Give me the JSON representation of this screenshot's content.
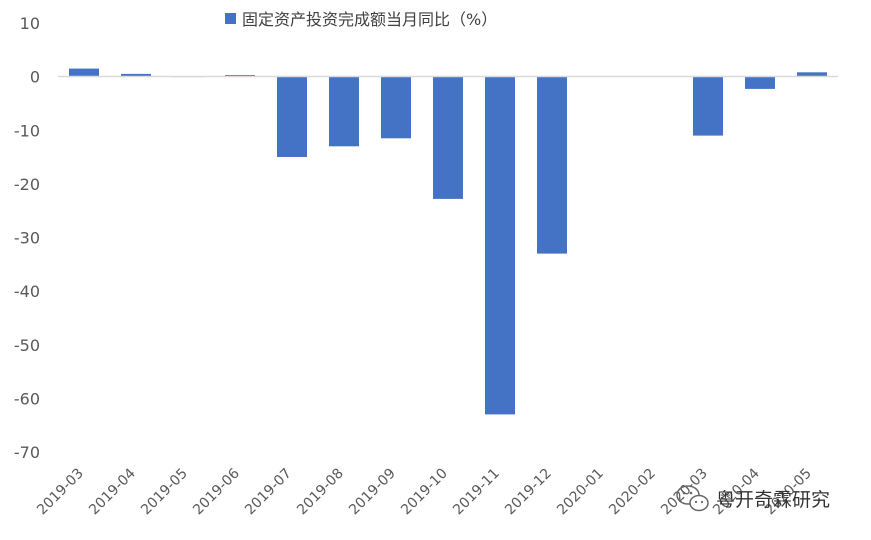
{
  "chart_data": {
    "type": "bar",
    "title": "",
    "xlabel": "",
    "ylabel": "",
    "ylim": [
      -70,
      10
    ],
    "yticks": [
      10,
      0,
      -10,
      -20,
      -30,
      -40,
      -50,
      -60,
      -70
    ],
    "legend_position": "top",
    "grid": false,
    "categories": [
      "2019-03",
      "2019-04",
      "2019-05",
      "2019-06",
      "2019-07",
      "2019-08",
      "2019-09",
      "2019-10",
      "2019-11",
      "2019-12",
      "2020-01",
      "2020-02",
      "2020-03",
      "2020-04",
      "2020-05"
    ],
    "series": [
      {
        "name": "固定资产投资完成额当月同比（%）",
        "color": "#4472c4",
        "values": [
          1.5,
          0.5,
          0,
          0.3,
          -15.0,
          -13.0,
          -11.5,
          -22.8,
          -63.0,
          -33.0,
          null,
          null,
          -11.0,
          -2.3,
          0.8
        ]
      }
    ]
  },
  "watermark": {
    "text": "粤开奇霖研究",
    "icon": "wechat-logo-icon"
  }
}
